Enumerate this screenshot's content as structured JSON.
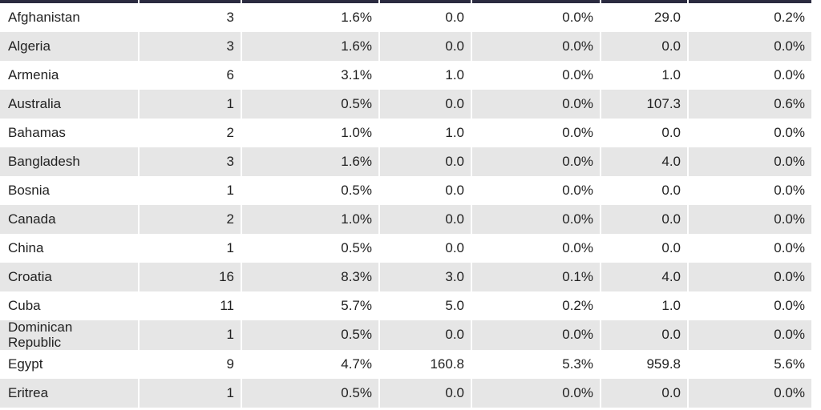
{
  "table": {
    "rows": [
      [
        "Afghanistan",
        "3",
        "1.6%",
        "0.0",
        "0.0%",
        "29.0",
        "0.2%"
      ],
      [
        "Algeria",
        "3",
        "1.6%",
        "0.0",
        "0.0%",
        "0.0",
        "0.0%"
      ],
      [
        "Armenia",
        "6",
        "3.1%",
        "1.0",
        "0.0%",
        "1.0",
        "0.0%"
      ],
      [
        "Australia",
        "1",
        "0.5%",
        "0.0",
        "0.0%",
        "107.3",
        "0.6%"
      ],
      [
        "Bahamas",
        "2",
        "1.0%",
        "1.0",
        "0.0%",
        "0.0",
        "0.0%"
      ],
      [
        "Bangladesh",
        "3",
        "1.6%",
        "0.0",
        "0.0%",
        "4.0",
        "0.0%"
      ],
      [
        "Bosnia",
        "1",
        "0.5%",
        "0.0",
        "0.0%",
        "0.0",
        "0.0%"
      ],
      [
        "Canada",
        "2",
        "1.0%",
        "0.0",
        "0.0%",
        "0.0",
        "0.0%"
      ],
      [
        "China",
        "1",
        "0.5%",
        "0.0",
        "0.0%",
        "0.0",
        "0.0%"
      ],
      [
        "Croatia",
        "16",
        "8.3%",
        "3.0",
        "0.1%",
        "4.0",
        "0.0%"
      ],
      [
        "Cuba",
        "11",
        "5.7%",
        "5.0",
        "0.2%",
        "1.0",
        "0.0%"
      ],
      [
        "Dominican Republic",
        "1",
        "0.5%",
        "0.0",
        "0.0%",
        "0.0",
        "0.0%"
      ],
      [
        "Egypt",
        "9",
        "4.7%",
        "160.8",
        "5.3%",
        "959.8",
        "5.6%"
      ],
      [
        "Eritrea",
        "1",
        "0.5%",
        "0.0",
        "0.0%",
        "0.0",
        "0.0%"
      ]
    ]
  }
}
